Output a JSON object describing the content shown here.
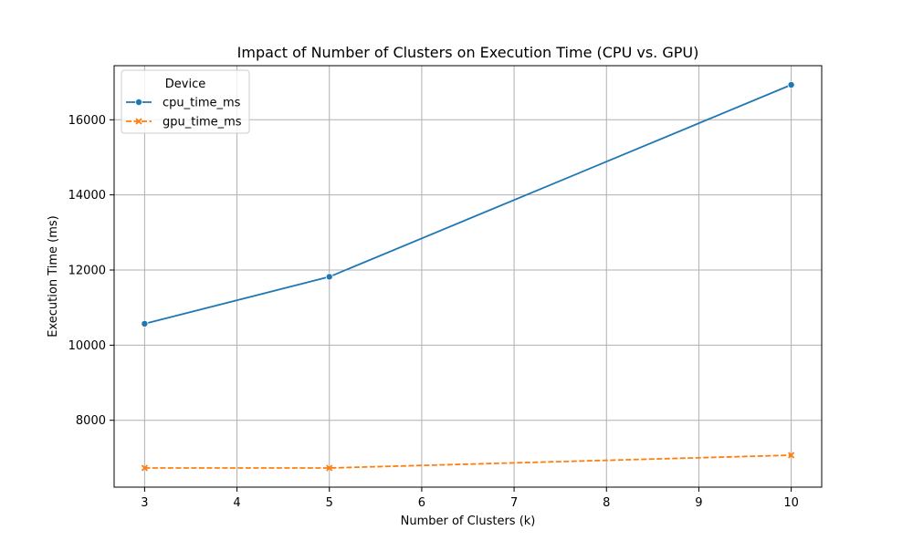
{
  "chart_data": {
    "type": "line",
    "title": "Impact of Number of Clusters on Execution Time (CPU vs. GPU)",
    "xlabel": "Number of Clusters (k)",
    "ylabel": "Execution Time (ms)",
    "x": [
      3,
      5,
      10
    ],
    "series": [
      {
        "name": "cpu_time_ms",
        "values": [
          10570,
          11820,
          16930
        ],
        "color": "#1f77b4",
        "marker": "circle",
        "linestyle": "solid"
      },
      {
        "name": "gpu_time_ms",
        "values": [
          6730,
          6730,
          7070
        ],
        "color": "#ff7f0e",
        "marker": "x",
        "linestyle": "dashed"
      }
    ],
    "xlim": [
      2.67,
      10.33
    ],
    "ylim": [
      6220,
      17440
    ],
    "xticks": [
      3,
      4,
      5,
      6,
      7,
      8,
      9,
      10
    ],
    "yticks": [
      8000,
      10000,
      12000,
      14000,
      16000
    ],
    "grid": true,
    "legend": {
      "title": "Device",
      "placement": "top-left"
    }
  }
}
